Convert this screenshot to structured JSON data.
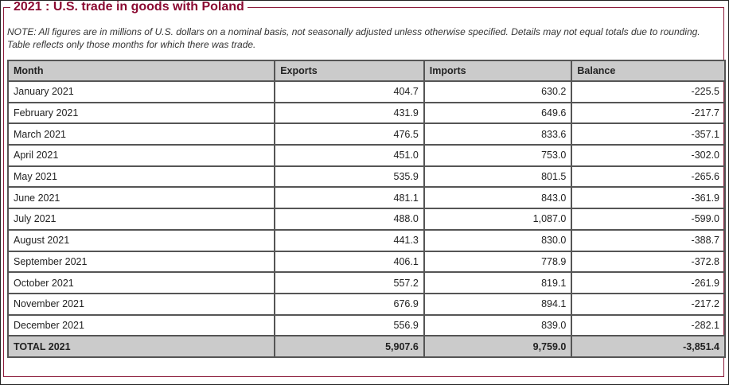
{
  "title": "2021 : U.S. trade in goods with Poland",
  "note": "NOTE: All figures are in millions of U.S. dollars on a nominal basis, not seasonally adjusted unless otherwise specified. Details may not equal totals due to rounding. Table reflects only those months for which there was trade.",
  "columns": [
    "Month",
    "Exports",
    "Imports",
    "Balance"
  ],
  "rows": [
    [
      "January 2021",
      "404.7",
      "630.2",
      "-225.5"
    ],
    [
      "February 2021",
      "431.9",
      "649.6",
      "-217.7"
    ],
    [
      "March 2021",
      "476.5",
      "833.6",
      "-357.1"
    ],
    [
      "April 2021",
      "451.0",
      "753.0",
      "-302.0"
    ],
    [
      "May 2021",
      "535.9",
      "801.5",
      "-265.6"
    ],
    [
      "June 2021",
      "481.1",
      "843.0",
      "-361.9"
    ],
    [
      "July 2021",
      "488.0",
      "1,087.0",
      "-599.0"
    ],
    [
      "August 2021",
      "441.3",
      "830.0",
      "-388.7"
    ],
    [
      "September 2021",
      "406.1",
      "778.9",
      "-372.8"
    ],
    [
      "October 2021",
      "557.2",
      "819.1",
      "-261.9"
    ],
    [
      "November 2021",
      "676.9",
      "894.1",
      "-217.2"
    ],
    [
      "December 2021",
      "556.9",
      "839.0",
      "-282.1"
    ]
  ],
  "total": [
    "TOTAL 2021",
    "5,907.6",
    "9,759.0",
    "-3,851.4"
  ]
}
